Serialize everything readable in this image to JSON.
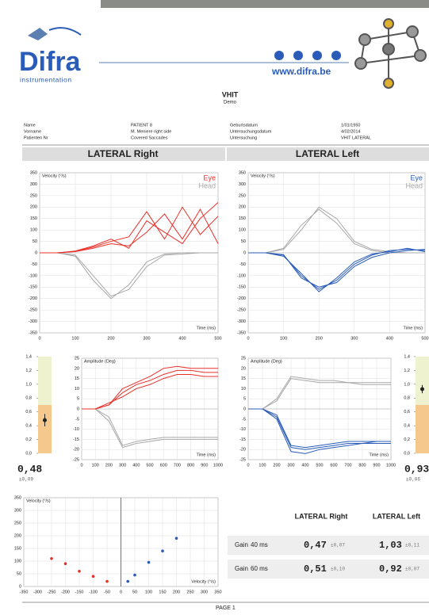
{
  "header": {
    "logo": "Difra",
    "logo_sub": "instrumentation",
    "website": "www.difra.be"
  },
  "title": "VHIT",
  "subtitle": "Demo",
  "patient": {
    "rows": [
      [
        "Name",
        "PATIENT 8",
        "Geburtsdatum",
        "1/01/1950"
      ],
      [
        "Vorname",
        "M. Meniere right side",
        "Untersuchungsdatum",
        "4/02/2014"
      ],
      [
        "Patienten Nr",
        "Covered Saccades",
        "Untersuchung",
        "VHIT LATERAL"
      ]
    ]
  },
  "sections": [
    "LATERAL Right",
    "LATERAL Left"
  ],
  "chart_data": [
    {
      "type": "line",
      "y_label": "Velocity (°/s)",
      "x_label": "Time (ms)",
      "legend": "upper right",
      "grid": true,
      "x": [
        0,
        50,
        100,
        150,
        200,
        250,
        300,
        350,
        400,
        450,
        500
      ],
      "xlim": [
        0,
        500
      ],
      "xticks": [
        0,
        100,
        200,
        300,
        400,
        500
      ],
      "ylim": [
        -350,
        350
      ],
      "yticks": [
        -350,
        -300,
        -250,
        -200,
        -150,
        -100,
        -50,
        0,
        50,
        100,
        150,
        200,
        250,
        300,
        350
      ],
      "series": [
        {
          "name": "Eye",
          "color": "#e8302a",
          "traces": [
            [
              0,
              0,
              5,
              20,
              40,
              30,
              90,
              170,
              60,
              190,
              40
            ],
            [
              0,
              0,
              8,
              30,
              60,
              20,
              140,
              90,
              40,
              150,
              220
            ],
            [
              0,
              0,
              6,
              25,
              50,
              70,
              180,
              60,
              200,
              80,
              160
            ]
          ]
        },
        {
          "name": "Head",
          "color": "#a8a8a8",
          "traces": [
            [
              0,
              0,
              -15,
              -120,
              -200,
              -140,
              -40,
              -5,
              0,
              0,
              0
            ],
            [
              0,
              0,
              -10,
              -100,
              -190,
              -160,
              -60,
              -10,
              -5,
              0,
              0
            ]
          ]
        }
      ]
    },
    {
      "type": "line",
      "y_label": "Velocity (°/s)",
      "x_label": "Time (ms)",
      "legend": "upper right",
      "grid": true,
      "x": [
        0,
        50,
        100,
        150,
        200,
        250,
        300,
        350,
        400,
        450,
        500
      ],
      "xlim": [
        0,
        500
      ],
      "xticks": [
        0,
        100,
        200,
        300,
        400,
        500
      ],
      "ylim": [
        -350,
        350
      ],
      "yticks": [
        -350,
        -300,
        -250,
        -200,
        -150,
        -100,
        -50,
        0,
        50,
        100,
        150,
        200,
        250,
        300,
        350
      ],
      "series": [
        {
          "name": "Eye",
          "color": "#2a5cb8",
          "traces": [
            [
              0,
              0,
              -10,
              -100,
              -160,
              -120,
              -50,
              -10,
              10,
              15,
              10
            ],
            [
              0,
              0,
              -15,
              -90,
              -170,
              -110,
              -40,
              -5,
              5,
              20,
              5
            ],
            [
              0,
              0,
              -8,
              -110,
              -150,
              -130,
              -60,
              -20,
              0,
              10,
              15
            ]
          ]
        },
        {
          "name": "Head",
          "color": "#a8a8a8",
          "traces": [
            [
              0,
              0,
              20,
              120,
              190,
              130,
              40,
              10,
              0,
              0,
              0
            ],
            [
              0,
              0,
              15,
              100,
              200,
              150,
              50,
              15,
              5,
              0,
              0
            ]
          ]
        }
      ]
    },
    {
      "type": "line",
      "y_label": "Amplitude (Deg)",
      "x_label": "Time (ms)",
      "grid": true,
      "x": [
        0,
        100,
        200,
        300,
        400,
        500,
        600,
        700,
        800,
        900,
        1000
      ],
      "xlim": [
        0,
        1000
      ],
      "xticks": [
        0,
        100,
        200,
        300,
        400,
        500,
        600,
        700,
        800,
        900,
        1000
      ],
      "ylim": [
        -25,
        25
      ],
      "yticks": [
        -25,
        -20,
        -15,
        -10,
        -5,
        0,
        5,
        10,
        15,
        20,
        25
      ],
      "series": [
        {
          "color": "#e8302a",
          "traces": [
            [
              0,
              0,
              2,
              8,
              12,
              14,
              17,
              19,
              19,
              18,
              18
            ],
            [
              0,
              0,
              2,
              10,
              13,
              16,
              20,
              21,
              20,
              20,
              20
            ],
            [
              0,
              0,
              3,
              6,
              10,
              12,
              15,
              17,
              17,
              16,
              16
            ]
          ]
        },
        {
          "color": "#a8a8a8",
          "traces": [
            [
              0,
              0,
              -6,
              -19,
              -17,
              -16,
              -15,
              -15,
              -15,
              -15,
              -15
            ],
            [
              0,
              0,
              -4,
              -18,
              -16,
              -15,
              -14,
              -14,
              -14,
              -14,
              -14
            ]
          ]
        }
      ]
    },
    {
      "type": "line",
      "y_label": "Amplitude (Deg)",
      "x_label": "Time (ms)",
      "grid": true,
      "x": [
        0,
        100,
        200,
        300,
        400,
        500,
        600,
        700,
        800,
        900,
        1000
      ],
      "xlim": [
        0,
        1000
      ],
      "xticks": [
        0,
        100,
        200,
        300,
        400,
        500,
        600,
        700,
        800,
        900,
        1000
      ],
      "ylim": [
        -25,
        25
      ],
      "yticks": [
        -25,
        -20,
        -15,
        -10,
        -5,
        0,
        5,
        10,
        15,
        20,
        25
      ],
      "series": [
        {
          "color": "#2a5cb8",
          "traces": [
            [
              0,
              0,
              -4,
              -19,
              -20,
              -19,
              -18,
              -17,
              -17,
              -17,
              -17
            ],
            [
              0,
              0,
              -5,
              -21,
              -22,
              -20,
              -19,
              -18,
              -17,
              -16,
              -16
            ],
            [
              0,
              0,
              -3,
              -18,
              -19,
              -18,
              -17,
              -16,
              -16,
              -16,
              -16
            ]
          ]
        },
        {
          "color": "#a8a8a8",
          "traces": [
            [
              0,
              0,
              5,
              16,
              15,
              14,
              14,
              13,
              13,
              13,
              13
            ],
            [
              0,
              0,
              4,
              15,
              14,
              13,
              13,
              13,
              12,
              12,
              12
            ]
          ]
        }
      ]
    },
    {
      "type": "scatter",
      "y_label": "Velocity (°/s)",
      "x_label": "Velocity (°/s)",
      "grid": true,
      "xlim": [
        -350,
        350
      ],
      "xticks": [
        -350,
        -300,
        -250,
        -200,
        -150,
        -100,
        -50,
        0,
        50,
        100,
        150,
        200,
        250,
        300,
        350
      ],
      "ylim": [
        0,
        350
      ],
      "yticks": [
        0,
        50,
        100,
        150,
        200,
        250,
        300,
        350
      ],
      "series": [
        {
          "color": "#e8302a",
          "x": [
            -250,
            -200,
            -150,
            -100,
            -50
          ],
          "values": [
            110,
            90,
            60,
            40,
            20
          ]
        },
        {
          "color": "#2a5cb8",
          "x": [
            25,
            50,
            100,
            150,
            200
          ],
          "values": [
            20,
            45,
            95,
            140,
            190
          ]
        }
      ]
    }
  ],
  "gain_indicators": [
    {
      "ylim": [
        0,
        1.4
      ],
      "yticks": [
        {
          "value": 0,
          "label": "0,0"
        },
        {
          "value": 0.2,
          "label": "0,2"
        },
        {
          "value": 0.4,
          "label": "0,4"
        },
        {
          "value": 0.6,
          "label": "0,6"
        },
        {
          "value": 0.8,
          "label": "0,8"
        },
        {
          "value": 1.0,
          "label": "1,0"
        },
        {
          "value": 1.2,
          "label": "1,2"
        },
        {
          "value": 1.4,
          "label": "1,4"
        }
      ],
      "bands": [
        {
          "from": 0,
          "to": 0.7,
          "color": "#f5c98e"
        },
        {
          "from": 0.7,
          "to": 1.4,
          "color": "#eef2cf"
        }
      ],
      "value": 0.48,
      "value_label": "0,48",
      "error": 0.09,
      "error_label": "±0,09"
    },
    {
      "ylim": [
        0,
        1.4
      ],
      "yticks": [
        {
          "value": 0,
          "label": "0,0"
        },
        {
          "value": 0.2,
          "label": "0,2"
        },
        {
          "value": 0.4,
          "label": "0,4"
        },
        {
          "value": 0.6,
          "label": "0,6"
        },
        {
          "value": 0.8,
          "label": "0,8"
        },
        {
          "value": 1.0,
          "label": "1,0"
        },
        {
          "value": 1.2,
          "label": "1,2"
        },
        {
          "value": 1.4,
          "label": "1,4"
        }
      ],
      "bands": [
        {
          "from": 0,
          "to": 0.7,
          "color": "#f5c98e"
        },
        {
          "from": 0.7,
          "to": 1.4,
          "color": "#eef2cf"
        }
      ],
      "value": 0.93,
      "value_label": "0,93",
      "error": 0.06,
      "error_label": "±0,06"
    }
  ],
  "results_table": {
    "header": [
      "LATERAL Right",
      "LATERAL Left"
    ],
    "rows": [
      [
        "Gain",
        "40 ms",
        "0,47",
        "±0,07",
        "1,03",
        "±0,11"
      ],
      [
        "Gain",
        "60 ms",
        "0,51",
        "±0,10",
        "0,92",
        "±0,07"
      ]
    ]
  },
  "footer": "PAGE 1"
}
